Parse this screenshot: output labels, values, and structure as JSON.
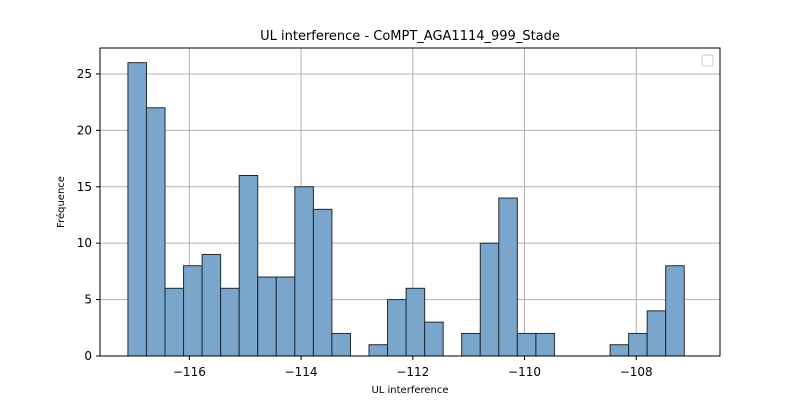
{
  "colors": {
    "bar_fill": "#7BA6CB",
    "bar_edge": "#1f2a33",
    "grid": "#b0b0b0",
    "axes": "#000000",
    "background": "#ffffff"
  },
  "chart_data": {
    "type": "bar",
    "subtype": "histogram",
    "title": "UL interference - CoMPT_AGA1114_999_Stade",
    "xlabel": "UL interference",
    "ylabel": "Fréquence",
    "xlim": [
      -117.6,
      -106.5
    ],
    "ylim": [
      0,
      27.3
    ],
    "xticks": [
      -116,
      -114,
      -112,
      -110,
      -108
    ],
    "xtick_labels": [
      "−116",
      "−114",
      "−112",
      "−110",
      "−108"
    ],
    "yticks": [
      0,
      5,
      10,
      15,
      20,
      25
    ],
    "ytick_labels": [
      "0",
      "5",
      "10",
      "15",
      "20",
      "25"
    ],
    "grid": true,
    "legend": {
      "placement": "upper-right",
      "entries": []
    },
    "bin_edges": [
      -117.1,
      -116.768,
      -116.436,
      -116.104,
      -115.772,
      -115.44,
      -115.108,
      -114.776,
      -114.444,
      -114.112,
      -113.78,
      -113.448,
      -113.116,
      -112.784,
      -112.452,
      -112.12,
      -111.788,
      -111.456,
      -111.124,
      -110.792,
      -110.46,
      -110.128,
      -109.796,
      -109.464,
      -109.132,
      -108.8,
      -108.468,
      -108.136,
      -107.804,
      -107.472,
      -107.14
    ],
    "values": [
      26,
      22,
      6,
      8,
      9,
      6,
      16,
      7,
      7,
      15,
      13,
      2,
      0,
      1,
      5,
      6,
      3,
      0,
      2,
      10,
      14,
      2,
      2,
      0,
      0,
      0,
      1,
      2,
      4,
      8
    ]
  }
}
